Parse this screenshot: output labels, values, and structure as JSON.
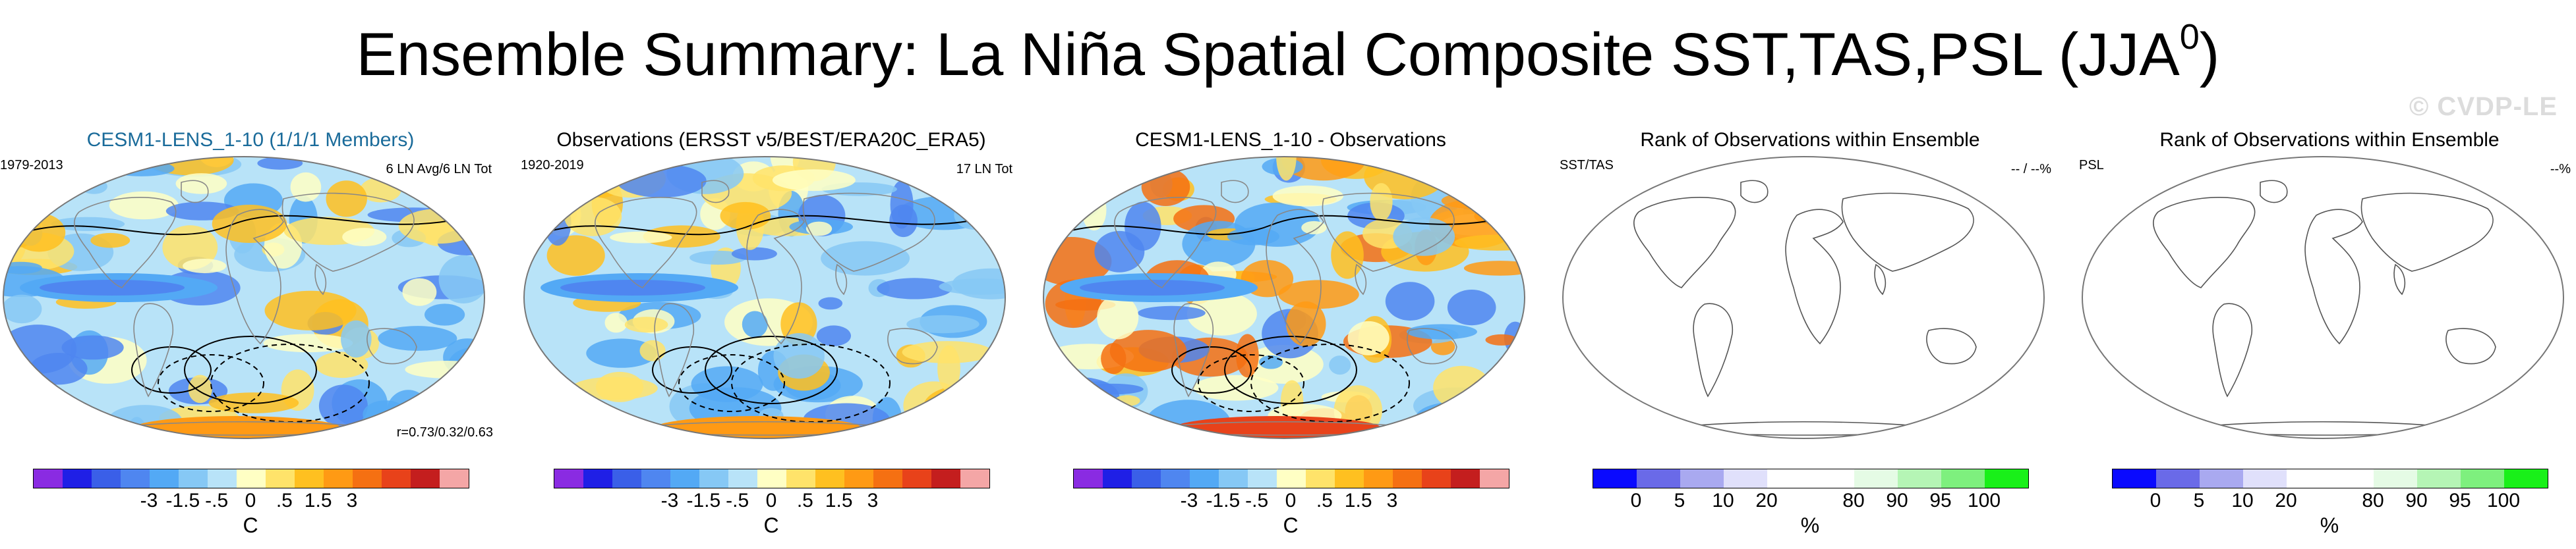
{
  "title": {
    "main": "Ensemble Summary: La Niña Spatial Composite SST,TAS,PSL (JJA",
    "sup": "0",
    "close": ")"
  },
  "watermark": "© CVDP-LE",
  "panels": [
    {
      "title": "CESM1-LENS_1-10 (1/1/1 Members)",
      "left": "1979-2013",
      "right": "6 LN Avg/6 LN Tot",
      "stat": "r=0.73/0.32/0.63",
      "map_type": "sst-tas-psl anomaly",
      "colorbar": {
        "colors": [
          "#8a2be2",
          "#1f1fe6",
          "#3a5fe8",
          "#4f86f0",
          "#53a9f5",
          "#86c8f5",
          "#b8e3f8",
          "#ffffc4",
          "#ffe36a",
          "#ffc020",
          "#ff9a14",
          "#f57012",
          "#e8421a",
          "#c41e1e",
          "#f4a6a6"
        ],
        "ticks": [
          "-3",
          "-1.5",
          "-.5",
          "0",
          ".5",
          "1.5",
          "3"
        ],
        "units": "C"
      }
    },
    {
      "title": "Observations (ERSST v5/BEST/ERA20C_ERA5)",
      "left": "1920-2019",
      "right": "17 LN Tot",
      "stat": "",
      "map_type": "sst-tas-psl anomaly",
      "colorbar": {
        "colors": [
          "#8a2be2",
          "#1f1fe6",
          "#3a5fe8",
          "#4f86f0",
          "#53a9f5",
          "#86c8f5",
          "#b8e3f8",
          "#ffffc4",
          "#ffe36a",
          "#ffc020",
          "#ff9a14",
          "#f57012",
          "#e8421a",
          "#c41e1e",
          "#f4a6a6"
        ],
        "ticks": [
          "-3",
          "-1.5",
          "-.5",
          "0",
          ".5",
          "1.5",
          "3"
        ],
        "units": "C"
      }
    },
    {
      "title": "CESM1-LENS_1-10 - Observations",
      "left": "",
      "right": "",
      "stat": "",
      "map_type": "difference",
      "colorbar": {
        "colors": [
          "#8a2be2",
          "#1f1fe6",
          "#3a5fe8",
          "#4f86f0",
          "#53a9f5",
          "#86c8f5",
          "#b8e3f8",
          "#ffffc4",
          "#ffe36a",
          "#ffc020",
          "#ff9a14",
          "#f57012",
          "#e8421a",
          "#c41e1e",
          "#f4a6a6"
        ],
        "ticks": [
          "-3",
          "-1.5",
          "-.5",
          "0",
          ".5",
          "1.5",
          "3"
        ],
        "units": "C"
      }
    },
    {
      "title": "Rank of Observations within Ensemble",
      "left": "SST/TAS",
      "right": "-- / --%",
      "stat": "",
      "map_type": "rank",
      "colorbar": {
        "colors": [
          "#0a0aff",
          "#6a6ae8",
          "#a9a9f0",
          "#e0e0fb",
          "#ffffff",
          "#ffffff",
          "#e5fbe5",
          "#b5f5b5",
          "#7ef07e",
          "#19f019"
        ],
        "ticks": [
          "0",
          "5",
          "10",
          "20",
          "80",
          "90",
          "95",
          "100"
        ],
        "units": "%"
      }
    },
    {
      "title": "Rank of Observations within Ensemble",
      "left": "PSL",
      "right": "--%",
      "stat": "",
      "map_type": "rank",
      "colorbar": {
        "colors": [
          "#0a0aff",
          "#6a6ae8",
          "#a9a9f0",
          "#e0e0fb",
          "#ffffff",
          "#ffffff",
          "#e5fbe5",
          "#b5f5b5",
          "#7ef07e",
          "#19f019"
        ],
        "ticks": [
          "0",
          "5",
          "10",
          "20",
          "80",
          "90",
          "95",
          "100"
        ],
        "units": "%"
      }
    }
  ]
}
